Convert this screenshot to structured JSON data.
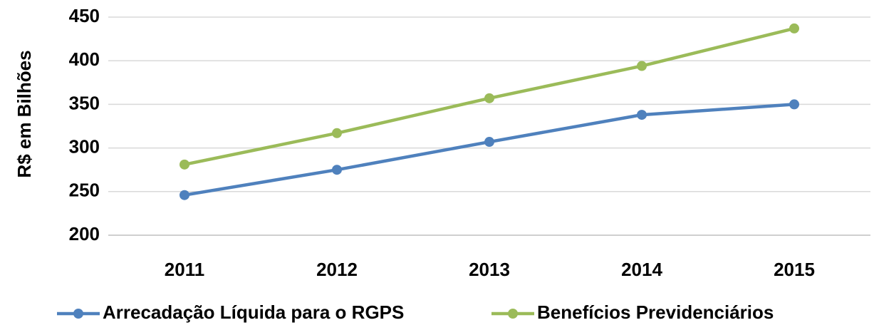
{
  "chart_data": {
    "type": "line",
    "y_label": "R$ em Bilhões",
    "categories": [
      "2011",
      "2012",
      "2013",
      "2014",
      "2015"
    ],
    "series": [
      {
        "name": "Arrecadação Líquida para o RGPS",
        "color": "#4f81bd",
        "values": [
          246,
          275,
          307,
          338,
          350
        ]
      },
      {
        "name": "Benefícios Previdenciários",
        "color": "#9bbb59",
        "values": [
          281,
          317,
          357,
          394,
          437
        ]
      }
    ],
    "ylim": [
      200,
      450
    ],
    "yticks": [
      200,
      250,
      300,
      350,
      400,
      450
    ],
    "grid": true,
    "legend": "bottom"
  }
}
